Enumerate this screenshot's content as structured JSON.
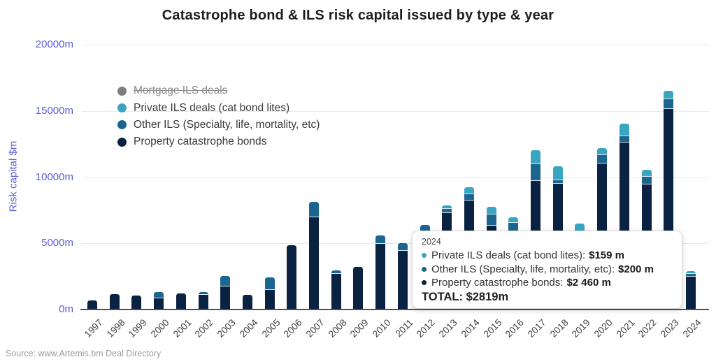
{
  "title": "Catastrophe bond & ILS risk capital issued by type & year",
  "y_axis": {
    "label": "Risk capital $m",
    "ticks": [
      "0m",
      "5000m",
      "10000m",
      "15000m",
      "20000m"
    ],
    "color": "#5c5cd6"
  },
  "legend": {
    "items": [
      {
        "label": "Mortgage ILS deals",
        "color": "#7d7d7d",
        "disabled": true
      },
      {
        "label": "Private ILS deals (cat bond lites)",
        "color": "#3aa5c1",
        "disabled": false
      },
      {
        "label": "Other ILS (Specialty, life, mortality, etc)",
        "color": "#1a6690",
        "disabled": false
      },
      {
        "label": "Property catastrophe bonds",
        "color": "#0b2343",
        "disabled": false
      }
    ]
  },
  "tooltip": {
    "year": "2024",
    "rows": [
      {
        "label": "Private ILS deals (cat bond lites):",
        "value": "$159 m",
        "color": "#3aa5c1"
      },
      {
        "label": "Other ILS (Specialty, life, mortality, etc):",
        "value": "$200 m",
        "color": "#1a6690"
      },
      {
        "label": "Property catastrophe bonds:",
        "value": "$2 460 m",
        "color": "#0b2343"
      }
    ],
    "total_label": "TOTAL:",
    "total_value": "$2819m"
  },
  "source": "Source: www.Artemis.bm Deal Directory",
  "chart_data": {
    "type": "bar",
    "stacked": true,
    "title": "Catastrophe bond & ILS risk capital issued by type & year",
    "xlabel": "",
    "ylabel": "Risk capital $m",
    "ylim": [
      0,
      20000
    ],
    "ytick_values": [
      0,
      5000,
      10000,
      15000,
      20000
    ],
    "grid": true,
    "legend_position": "upper-left-inside",
    "categories": [
      "1997",
      "1998",
      "1999",
      "2000",
      "2001",
      "2002",
      "2003",
      "2004",
      "2005",
      "2006",
      "2007",
      "2008",
      "2009",
      "2010",
      "2011",
      "2012",
      "2013",
      "2014",
      "2015",
      "2016",
      "2017",
      "2018",
      "2019",
      "2020",
      "2021",
      "2022",
      "2023",
      "2024"
    ],
    "series": [
      {
        "name": "Property catastrophe bonds",
        "color": "#0b2343",
        "values": [
          690,
          1180,
          1060,
          860,
          1210,
          1110,
          1760,
          1110,
          1500,
          4860,
          6950,
          2715,
          3220,
          4980,
          4450,
          5870,
          7290,
          8220,
          6320,
          5900,
          9730,
          9520,
          5600,
          11040,
          12590,
          9470,
          15140,
          2460
        ]
      },
      {
        "name": "Other ILS (Specialty, life, mortality, etc)",
        "color": "#1a6690",
        "values": [
          0,
          0,
          0,
          390,
          0,
          160,
          700,
          0,
          880,
          0,
          1150,
          175,
          0,
          560,
          530,
          450,
          260,
          440,
          790,
          600,
          1220,
          180,
          100,
          580,
          440,
          530,
          710,
          200
        ]
      },
      {
        "name": "Private ILS deals (cat bond lites)",
        "color": "#3aa5c1",
        "values": [
          0,
          0,
          0,
          0,
          0,
          0,
          0,
          0,
          0,
          0,
          0,
          0,
          0,
          0,
          0,
          0,
          220,
          475,
          530,
          350,
          1000,
          1000,
          700,
          475,
          920,
          475,
          560,
          159
        ]
      }
    ],
    "hidden_series": [
      {
        "name": "Mortgage ILS deals",
        "color": "#7d7d7d",
        "note": "toggled off in legend"
      }
    ],
    "hover_tooltip": {
      "category": "2024",
      "values": {
        "Private ILS deals (cat bond lites)": 159,
        "Other ILS (Specialty, life, mortality, etc)": 200,
        "Property catastrophe bonds": 2460,
        "TOTAL": 2819
      }
    }
  }
}
